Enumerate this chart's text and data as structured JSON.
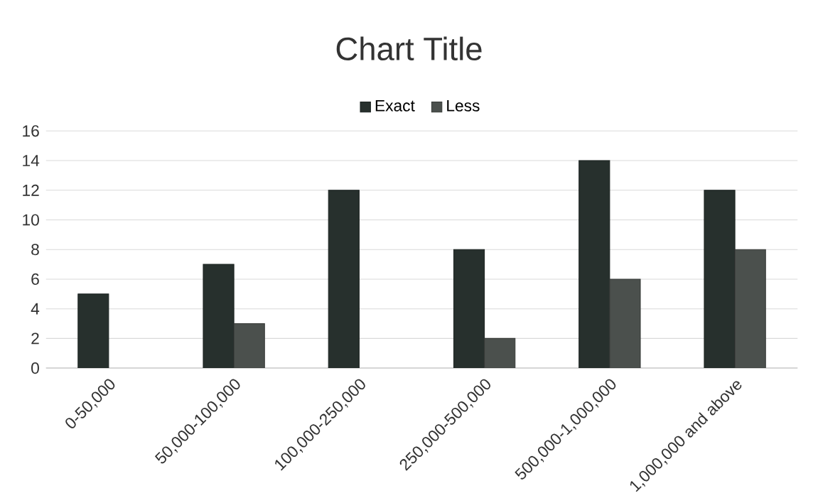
{
  "chart_data": {
    "type": "bar",
    "title": "Chart Title",
    "categories": [
      "0-50,000",
      "50,000-100,000",
      "100,000-250,000",
      "250,000-500,000",
      "500,000-1,000,000",
      "1,000,000 and above"
    ],
    "series": [
      {
        "name": "Exact",
        "color": "#27302d",
        "values": [
          5,
          7,
          12,
          8,
          14,
          12
        ]
      },
      {
        "name": "Less",
        "color": "#4b504d",
        "values": [
          null,
          3,
          null,
          2,
          6,
          8
        ]
      }
    ],
    "ylim": [
      0,
      16
    ],
    "yticks": [
      0,
      2,
      4,
      6,
      8,
      10,
      12,
      14,
      16
    ],
    "grid": "y",
    "legend": "top"
  }
}
